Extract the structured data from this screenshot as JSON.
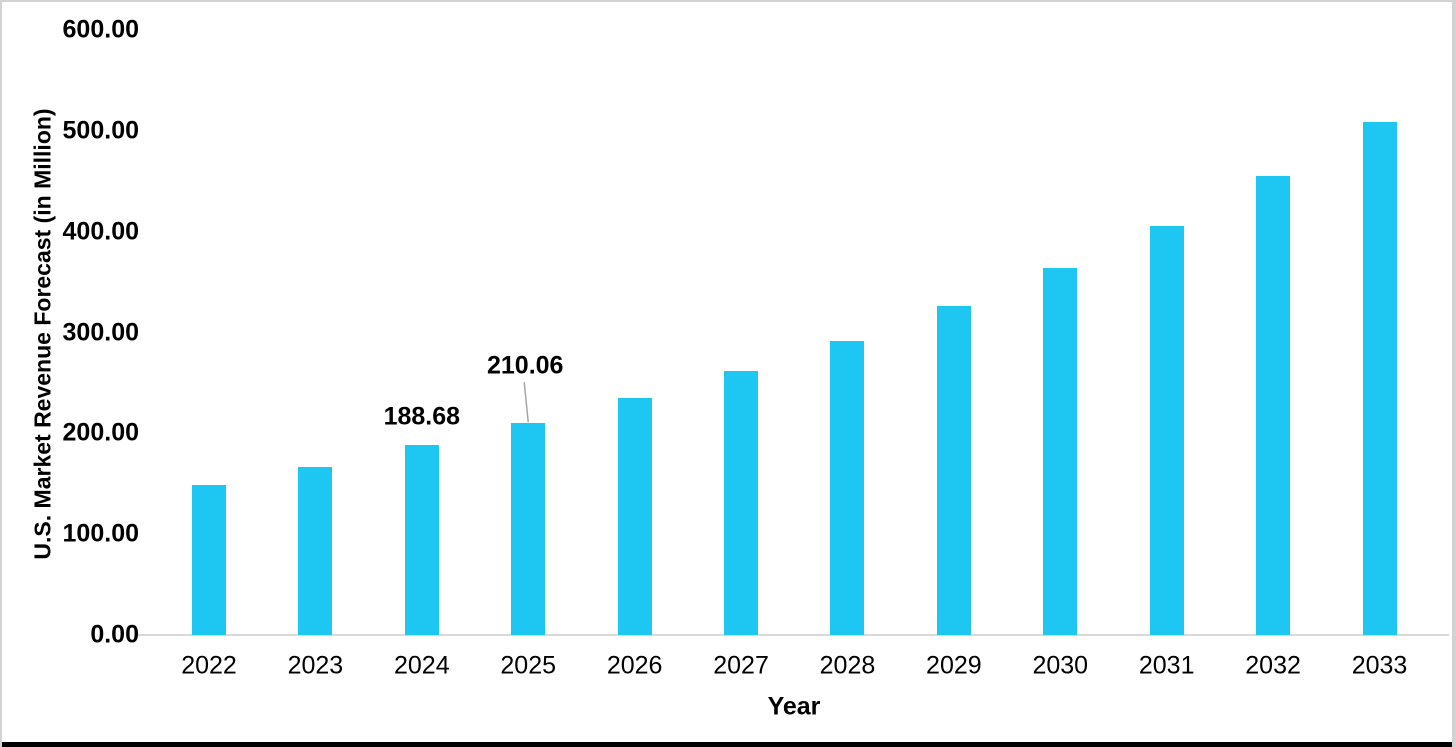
{
  "page": {
    "background_color": "#FFFFFF",
    "frame_border_color": "#D2D2D2",
    "bottom_rule_color": "#000000"
  },
  "chart_data": {
    "type": "bar",
    "title": "",
    "xlabel": "Year",
    "ylabel": "U.S. Market Revenue Forecast (in Million)",
    "categories": [
      "2022",
      "2023",
      "2024",
      "2025",
      "2026",
      "2027",
      "2028",
      "2029",
      "2030",
      "2031",
      "2032",
      "2033"
    ],
    "values": [
      149.0,
      167.0,
      188.68,
      210.06,
      235.0,
      262.0,
      292.0,
      326.0,
      364.0,
      406.0,
      455.0,
      509.0
    ],
    "data_labels": [
      {
        "category": "2024",
        "text": "188.68",
        "leader": false
      },
      {
        "category": "2025",
        "text": "210.06",
        "leader": true
      }
    ],
    "y_ticks": [
      {
        "value": 0,
        "label": "0.00"
      },
      {
        "value": 100,
        "label": "100.00"
      },
      {
        "value": 200,
        "label": "200.00"
      },
      {
        "value": 300,
        "label": "300.00"
      },
      {
        "value": 400,
        "label": "400.00"
      },
      {
        "value": 500,
        "label": "500.00"
      },
      {
        "value": 600,
        "label": "600.00"
      }
    ],
    "ylim": [
      0,
      600
    ],
    "bar_color": "#1DC7F2",
    "axis_line_color": "#D9D9D9",
    "leader_line_color": "#A6A6A6",
    "text_color": "#000000",
    "gridlines": false,
    "legend": "none"
  }
}
